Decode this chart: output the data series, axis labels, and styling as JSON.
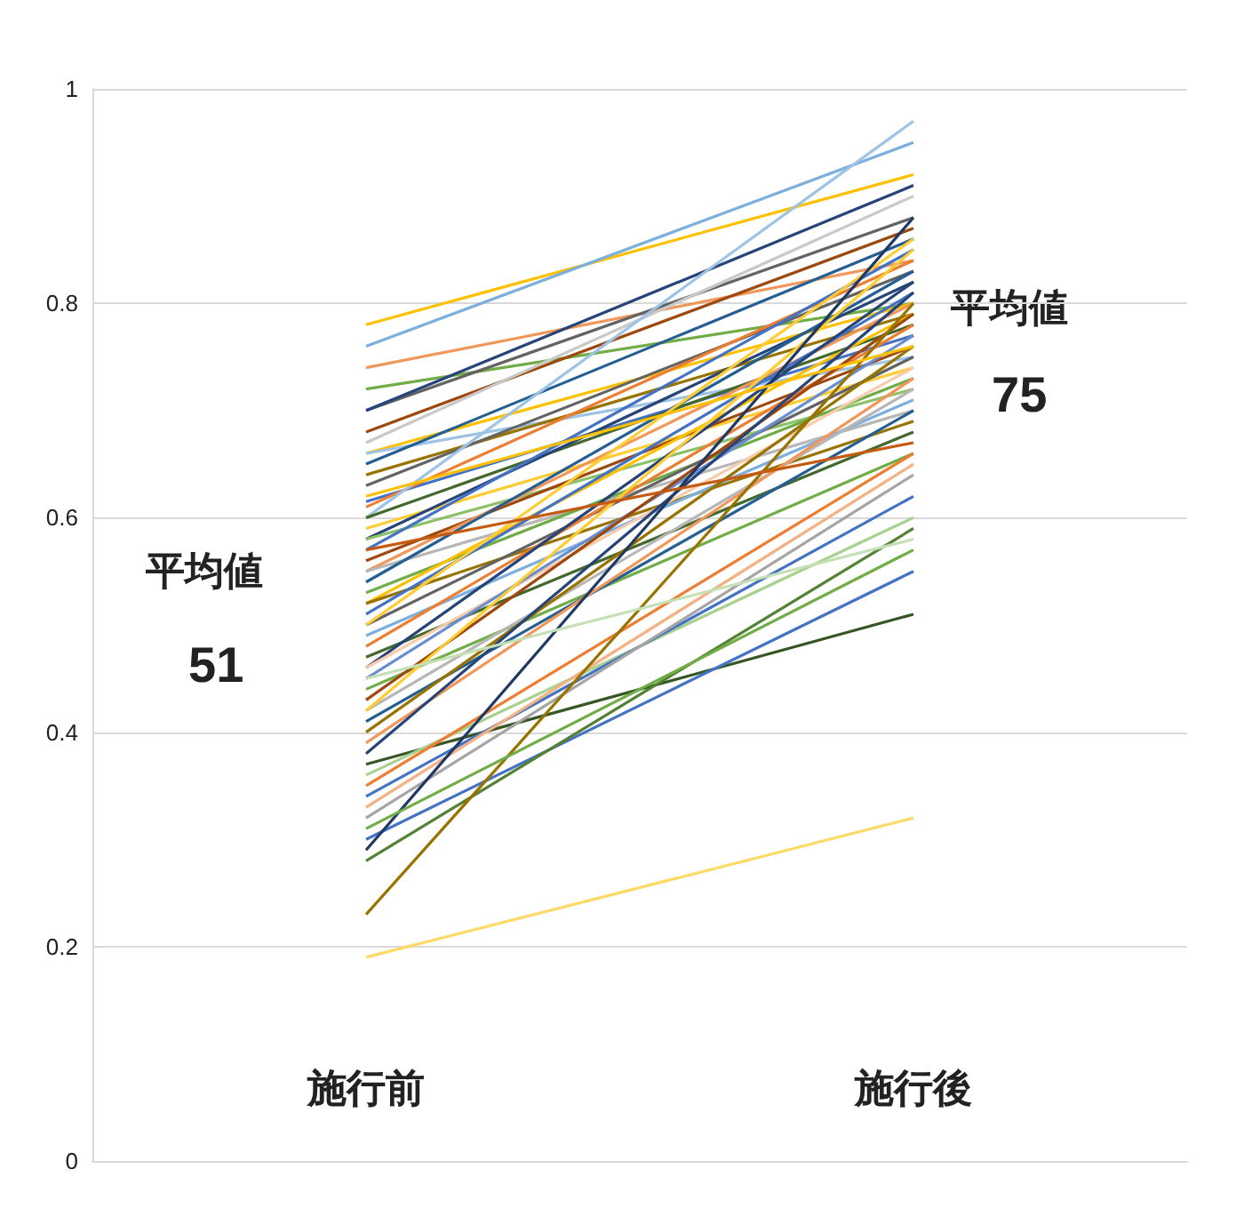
{
  "chart_data": {
    "type": "line",
    "categories": [
      "施行前",
      "施行後"
    ],
    "ylim": [
      0,
      1
    ],
    "yticks": [
      0,
      0.2,
      0.4,
      0.6,
      0.8,
      1
    ],
    "grid": "y",
    "marker": "none",
    "annotations": [
      "平均値",
      "51",
      "平均値",
      "75"
    ],
    "series": [
      {
        "color": "#ffc000",
        "values": [
          0.78,
          0.92
        ]
      },
      {
        "color": "#7cafdd",
        "values": [
          0.76,
          0.95
        ]
      },
      {
        "color": "#f1975a",
        "values": [
          0.74,
          0.84
        ]
      },
      {
        "color": "#70ad47",
        "values": [
          0.72,
          0.8
        ]
      },
      {
        "color": "#636363",
        "values": [
          0.7,
          0.88
        ]
      },
      {
        "color": "#264478",
        "values": [
          0.7,
          0.91
        ]
      },
      {
        "color": "#9e480e",
        "values": [
          0.68,
          0.87
        ]
      },
      {
        "color": "#c9c9c9",
        "values": [
          0.67,
          0.9
        ]
      },
      {
        "color": "#ffc000",
        "values": [
          0.66,
          0.8
        ]
      },
      {
        "color": "#9dc3e6",
        "values": [
          0.66,
          0.75
        ]
      },
      {
        "color": "#255e91",
        "values": [
          0.65,
          0.86
        ]
      },
      {
        "color": "#997300",
        "values": [
          0.64,
          0.79
        ]
      },
      {
        "color": "#636363",
        "values": [
          0.63,
          0.83
        ]
      },
      {
        "color": "#4472c4",
        "values": [
          0.615,
          0.77
        ]
      },
      {
        "color": "#ed7d31",
        "values": [
          0.61,
          0.84
        ]
      },
      {
        "color": "#9dc3e6",
        "values": [
          0.6,
          0.97
        ]
      },
      {
        "color": "#43682b",
        "values": [
          0.6,
          0.78
        ]
      },
      {
        "color": "#ffcd33",
        "values": [
          0.59,
          0.74
        ]
      },
      {
        "color": "#264478",
        "values": [
          0.58,
          0.82
        ]
      },
      {
        "color": "#8cc168",
        "values": [
          0.58,
          0.72
        ]
      },
      {
        "color": "#4472c4",
        "values": [
          0.57,
          0.85
        ]
      },
      {
        "color": "#9e480e",
        "values": [
          0.56,
          0.76
        ]
      },
      {
        "color": "#f1975a",
        "values": [
          0.55,
          0.8
        ]
      },
      {
        "color": "#b7b7b7",
        "values": [
          0.55,
          0.7
        ]
      },
      {
        "color": "#255e91",
        "values": [
          0.54,
          0.83
        ]
      },
      {
        "color": "#70ad47",
        "values": [
          0.53,
          0.73
        ]
      },
      {
        "color": "#ffc000",
        "values": [
          0.52,
          0.79
        ]
      },
      {
        "color": "#997300",
        "values": [
          0.52,
          0.69
        ]
      },
      {
        "color": "#4472c4",
        "values": [
          0.51,
          0.81
        ]
      },
      {
        "color": "#636363",
        "values": [
          0.5,
          0.75
        ]
      },
      {
        "color": "#ffcd33",
        "values": [
          0.5,
          0.86
        ]
      },
      {
        "color": "#7cafdd",
        "values": [
          0.49,
          0.71
        ]
      },
      {
        "color": "#ed7d31",
        "values": [
          0.48,
          0.78
        ]
      },
      {
        "color": "#43682b",
        "values": [
          0.47,
          0.68
        ]
      },
      {
        "color": "#264478",
        "values": [
          0.46,
          0.82
        ]
      },
      {
        "color": "#f8cbad",
        "values": [
          0.46,
          0.74
        ]
      },
      {
        "color": "#698ed0",
        "values": [
          0.45,
          0.77
        ]
      },
      {
        "color": "#70ad47",
        "values": [
          0.44,
          0.66
        ]
      },
      {
        "color": "#9e480e",
        "values": [
          0.43,
          0.79
        ]
      },
      {
        "color": "#b7b7b7",
        "values": [
          0.42,
          0.72
        ]
      },
      {
        "color": "#ffcd33",
        "values": [
          0.42,
          0.85
        ]
      },
      {
        "color": "#255e91",
        "values": [
          0.41,
          0.7
        ]
      },
      {
        "color": "#997300",
        "values": [
          0.4,
          0.76
        ]
      },
      {
        "color": "#f1975a",
        "values": [
          0.39,
          0.73
        ]
      },
      {
        "color": "#264478",
        "values": [
          0.38,
          0.81
        ]
      },
      {
        "color": "#375623",
        "values": [
          0.37,
          0.51
        ]
      },
      {
        "color": "#a9d18e",
        "values": [
          0.36,
          0.6
        ]
      },
      {
        "color": "#ed7d31",
        "values": [
          0.35,
          0.66
        ]
      },
      {
        "color": "#4472c4",
        "values": [
          0.34,
          0.62
        ]
      },
      {
        "color": "#f4b183",
        "values": [
          0.33,
          0.65
        ]
      },
      {
        "color": "#a5a5a5",
        "values": [
          0.32,
          0.64
        ]
      },
      {
        "color": "#4472c4",
        "values": [
          0.3,
          0.55
        ]
      },
      {
        "color": "#1f3864",
        "values": [
          0.29,
          0.88
        ]
      },
      {
        "color": "#548235",
        "values": [
          0.28,
          0.59
        ]
      },
      {
        "color": "#997300",
        "values": [
          0.23,
          0.8
        ]
      },
      {
        "color": "#ffd966",
        "values": [
          0.19,
          0.32
        ]
      },
      {
        "color": "#70ad47",
        "values": [
          0.31,
          0.57
        ]
      },
      {
        "color": "#c5e0b4",
        "values": [
          0.45,
          0.58
        ]
      },
      {
        "color": "#c55a11",
        "values": [
          0.57,
          0.67
        ]
      },
      {
        "color": "#ffc000",
        "values": [
          0.62,
          0.76
        ]
      }
    ]
  }
}
